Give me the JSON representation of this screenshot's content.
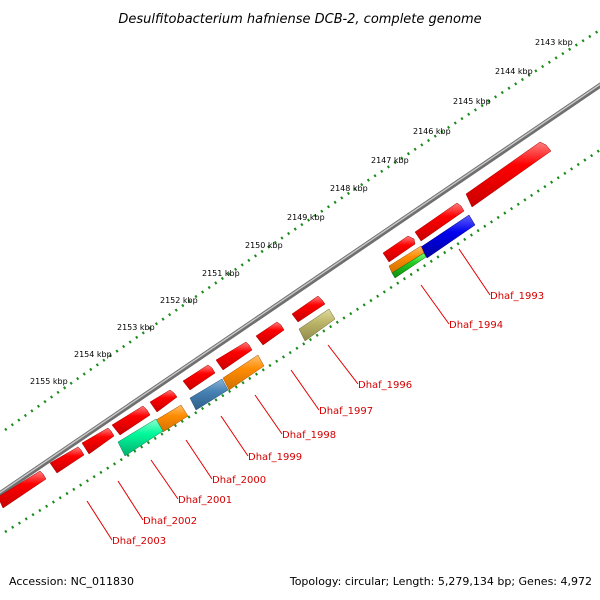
{
  "title": "Desulfitobacterium hafniense DCB-2, complete genome",
  "footer": {
    "accession": "Accession: NC_011830",
    "summary": "Topology: circular; Length: 5,279,134 bp; Genes: 4,972"
  },
  "colors": {
    "backbone": "#8c8c8c",
    "ticks": "#1a8c1a",
    "gene_label": "#d40000",
    "leader_line": "#e00000"
  },
  "ticks": [
    "2143 kbp",
    "2144 kbp",
    "2145 kbp",
    "2146 kbp",
    "2147 kbp",
    "2148 kbp",
    "2149 kbp",
    "2150 kbp",
    "2151 kbp",
    "2152 kbp",
    "2153 kbp",
    "2154 kbp",
    "2155 kbp"
  ],
  "genes": [
    {
      "label": "Dhaf_1993",
      "color": "#0000ee"
    },
    {
      "label": "Dhaf_1994",
      "color": "#ff8c00"
    },
    {
      "label": "Dhaf_1996",
      "color": "#bdb76b"
    },
    {
      "label": "Dhaf_1997",
      "color": "#ff0000"
    },
    {
      "label": "Dhaf_1998",
      "color": "#ff8c00"
    },
    {
      "label": "Dhaf_1999",
      "color": "#4682b4"
    },
    {
      "label": "Dhaf_2000",
      "color": "#ff8c00"
    },
    {
      "label": "Dhaf_2001",
      "color": "#ff8c00"
    },
    {
      "label": "Dhaf_2002",
      "color": "#00fa9a"
    },
    {
      "label": "Dhaf_2003",
      "color": "#ff0000"
    }
  ]
}
